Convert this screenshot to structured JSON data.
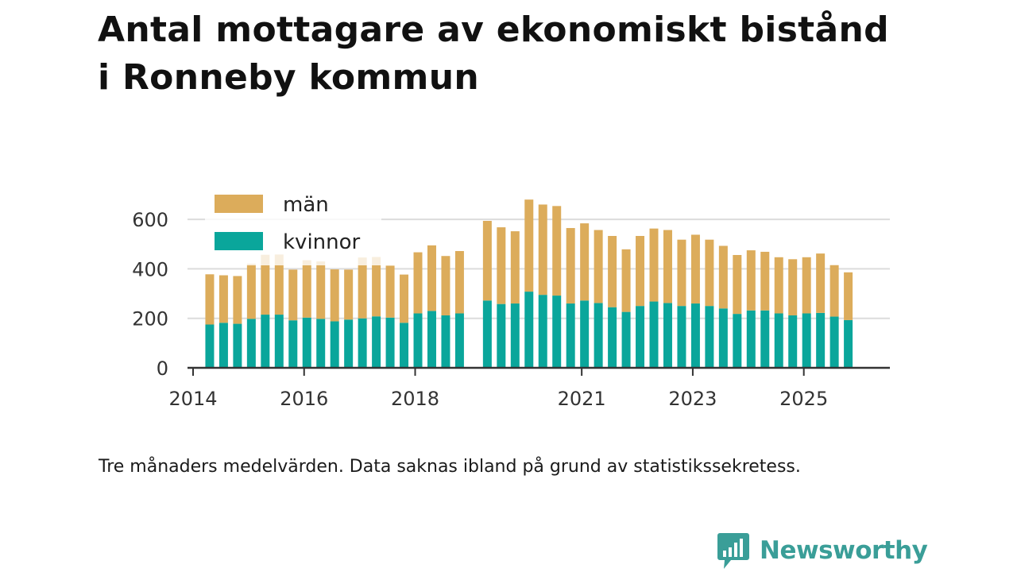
{
  "title_lines": [
    "Antal mottagare av ekonomiskt bistånd",
    "i Ronneby kommun"
  ],
  "caption": "Tre månaders medelvärden. Data saknas ibland på grund av statistikssekretess.",
  "brand": {
    "name": "Newsworthy",
    "color": "#3a9e98",
    "icon": "newsworthy-logo-icon"
  },
  "colors": {
    "men": "#dcac5b",
    "women": "#0aa69b",
    "grid": "#dcdcdc",
    "axis": "#333333",
    "text": "#333333"
  },
  "chart_data": {
    "type": "bar",
    "stacked": true,
    "title": "Antal mottagare av ekonomiskt bistånd i Ronneby kommun",
    "xlabel": "",
    "ylabel": "",
    "ylim": [
      0,
      700
    ],
    "xlim": [
      2013.9,
      2026.55
    ],
    "y_ticks": [
      0,
      200,
      400,
      600
    ],
    "x_ticks": [
      2014,
      2016,
      2018,
      2021,
      2023,
      2025
    ],
    "legend": {
      "position": "top-left",
      "entries": [
        "män",
        "kvinnor"
      ]
    },
    "x": [
      2014.3,
      2014.55,
      2014.8,
      2015.05,
      2015.3,
      2015.55,
      2015.8,
      2016.05,
      2016.3,
      2016.55,
      2016.8,
      2017.05,
      2017.3,
      2017.55,
      2017.8,
      2018.05,
      2018.3,
      2018.55,
      2018.8,
      2019.3,
      2019.55,
      2019.8,
      2020.05,
      2020.3,
      2020.55,
      2020.8,
      2021.05,
      2021.3,
      2021.55,
      2021.8,
      2022.05,
      2022.3,
      2022.55,
      2022.8,
      2023.05,
      2023.3,
      2023.55,
      2023.8,
      2024.05,
      2024.3,
      2024.55,
      2024.8,
      2025.05,
      2025.3,
      2025.55,
      2025.8
    ],
    "series": [
      {
        "name": "kvinnor",
        "color": "#0aa69b",
        "values": [
          175,
          182,
          178,
          198,
          215,
          215,
          192,
          203,
          198,
          188,
          195,
          200,
          208,
          203,
          182,
          220,
          230,
          212,
          220,
          272,
          258,
          260,
          308,
          295,
          292,
          260,
          272,
          262,
          245,
          226,
          250,
          268,
          262,
          250,
          260,
          250,
          240,
          218,
          232,
          232,
          220,
          212,
          220,
          222,
          207,
          193
        ]
      },
      {
        "name": "män",
        "color": "#dcac5b",
        "values": [
          203,
          192,
          193,
          223,
          242,
          243,
          205,
          232,
          232,
          210,
          202,
          246,
          240,
          210,
          195,
          247,
          265,
          240,
          252,
          322,
          310,
          292,
          372,
          365,
          362,
          305,
          312,
          295,
          288,
          253,
          283,
          295,
          295,
          268,
          278,
          268,
          253,
          238,
          243,
          237,
          227,
          227,
          227,
          240,
          208,
          193
        ]
      }
    ]
  }
}
